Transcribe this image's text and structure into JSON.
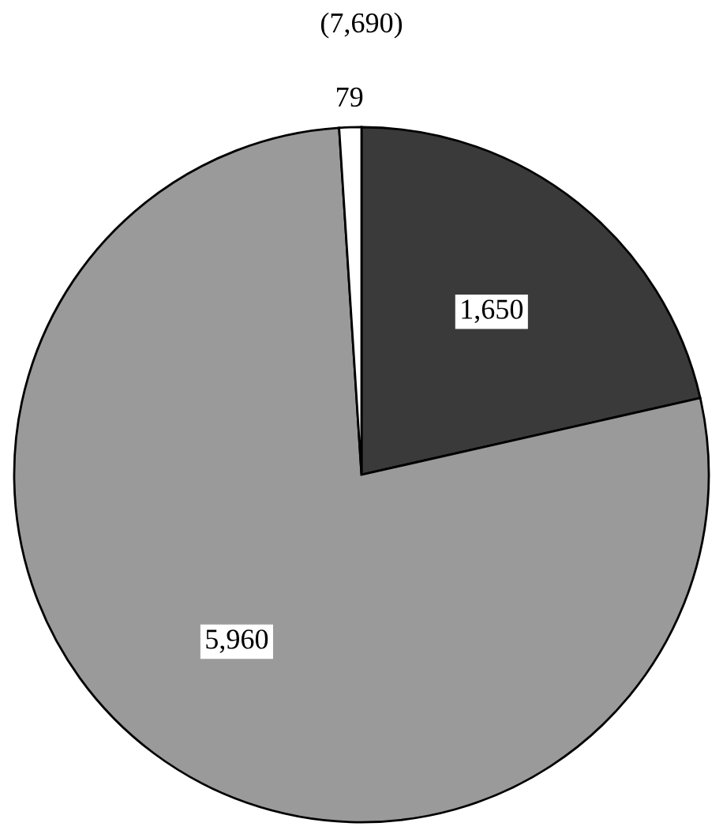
{
  "chart_data": {
    "type": "pie",
    "title": "(7,690)",
    "categories": [
      null,
      null,
      null
    ],
    "values": [
      1650,
      5960,
      79
    ],
    "value_labels": [
      "1,650",
      "5,960",
      "79"
    ],
    "colors": [
      "#3a3a3a",
      "#9a9a9a",
      "#ffffff"
    ]
  }
}
